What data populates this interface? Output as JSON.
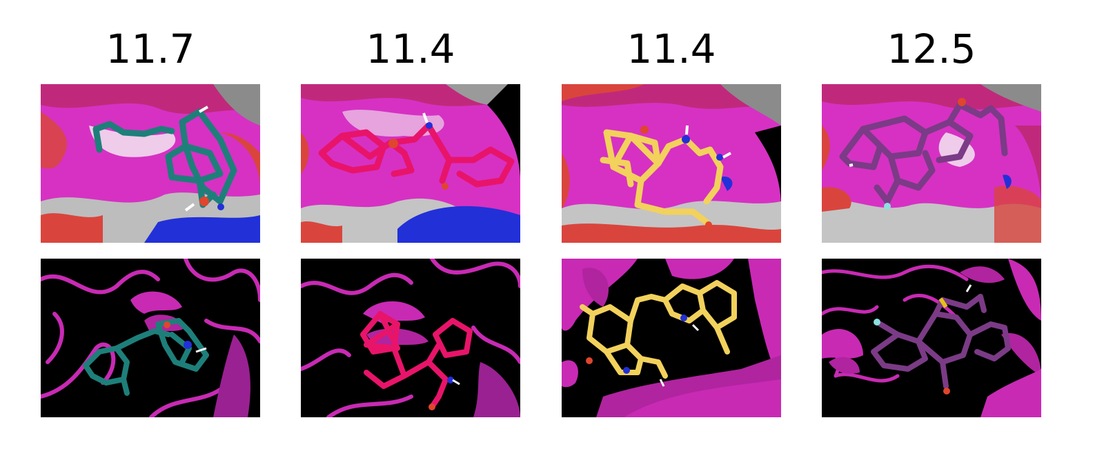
{
  "panels": [
    {
      "score": "11.7",
      "ligand_color": "#1e7f7a",
      "ligand_name": "teal-ligand"
    },
    {
      "score": "11.4",
      "ligand_color": "#e8146a",
      "ligand_name": "crimson-ligand"
    },
    {
      "score": "11.4",
      "ligand_color": "#f2d15c",
      "ligand_name": "yellow-ligand"
    },
    {
      "score": "12.5",
      "ligand_color": "#7b3b86",
      "ligand_name": "purple-ligand"
    }
  ],
  "colors": {
    "surface_magenta": "#d631c3",
    "surface_red": "#d9453d",
    "surface_white": "#c8c8c8",
    "surface_blue": "#2230d8",
    "cartoon_magenta": "#c82ab4",
    "background_black": "#000000"
  }
}
